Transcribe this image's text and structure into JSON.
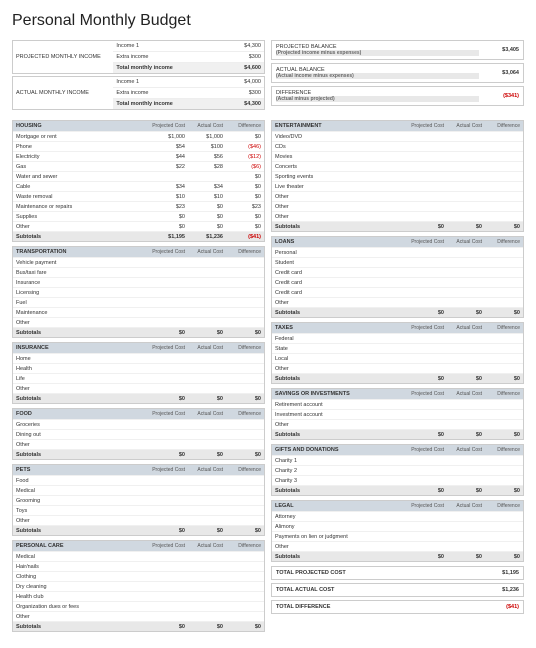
{
  "title": "Personal Monthly Budget",
  "income": {
    "projected": {
      "label": "PROJECTED MONTHLY INCOME",
      "rows": [
        [
          "Income 1",
          "$4,300"
        ],
        [
          "Extra income",
          "$300"
        ]
      ],
      "total": [
        "Total monthly income",
        "$4,600"
      ]
    },
    "actual": {
      "label": "ACTUAL MONTHLY INCOME",
      "rows": [
        [
          "Income 1",
          "$4,000"
        ],
        [
          "Extra income",
          "$300"
        ]
      ],
      "total": [
        "Total monthly income",
        "$4,300"
      ]
    }
  },
  "balance": [
    {
      "label": "PROJECTED BALANCE",
      "sub": "(Projected income minus expenses)",
      "val": "$3,405",
      "neg": false
    },
    {
      "label": "ACTUAL BALANCE",
      "sub": "(Actual income minus expenses)",
      "val": "$3,064",
      "neg": false
    },
    {
      "label": "DIFFERENCE",
      "sub": "(Actual minus projected)",
      "val": "($341)",
      "neg": true
    }
  ],
  "cols_header": [
    "Projected Cost",
    "Actual Cost",
    "Difference"
  ],
  "left": [
    {
      "t": "HOUSING",
      "r": [
        [
          "Mortgage or rent",
          "$1,000",
          "$1,000",
          "$0"
        ],
        [
          "Phone",
          "$54",
          "$100",
          "($46)"
        ],
        [
          "Electricity",
          "$44",
          "$56",
          "($12)"
        ],
        [
          "Gas",
          "$22",
          "$28",
          "($6)"
        ],
        [
          "Water and sewer",
          "",
          "",
          "$0"
        ],
        [
          "Cable",
          "$34",
          "$34",
          "$0"
        ],
        [
          "Waste removal",
          "$10",
          "$10",
          "$0"
        ],
        [
          "Maintenance or repairs",
          "$23",
          "$0",
          "$23"
        ],
        [
          "Supplies",
          "$0",
          "$0",
          "$0"
        ],
        [
          "Other",
          "$0",
          "$0",
          "$0"
        ]
      ],
      "s": [
        "$1,195",
        "$1,236",
        "($41)"
      ]
    },
    {
      "t": "TRANSPORTATION",
      "r": [
        [
          "Vehicle payment",
          "",
          "",
          ""
        ],
        [
          "Bus/taxi fare",
          "",
          "",
          ""
        ],
        [
          "Insurance",
          "",
          "",
          ""
        ],
        [
          "Licensing",
          "",
          "",
          ""
        ],
        [
          "Fuel",
          "",
          "",
          ""
        ],
        [
          "Maintenance",
          "",
          "",
          ""
        ],
        [
          "Other",
          "",
          "",
          ""
        ]
      ],
      "s": [
        "$0",
        "$0",
        "$0"
      ]
    },
    {
      "t": "INSURANCE",
      "r": [
        [
          "Home",
          "",
          "",
          ""
        ],
        [
          "Health",
          "",
          "",
          ""
        ],
        [
          "Life",
          "",
          "",
          ""
        ],
        [
          "Other",
          "",
          "",
          ""
        ]
      ],
      "s": [
        "$0",
        "$0",
        "$0"
      ]
    },
    {
      "t": "FOOD",
      "r": [
        [
          "Groceries",
          "",
          "",
          ""
        ],
        [
          "Dining out",
          "",
          "",
          ""
        ],
        [
          "Other",
          "",
          "",
          ""
        ]
      ],
      "s": [
        "$0",
        "$0",
        "$0"
      ]
    },
    {
      "t": "PETS",
      "r": [
        [
          "Food",
          "",
          "",
          ""
        ],
        [
          "Medical",
          "",
          "",
          ""
        ],
        [
          "Grooming",
          "",
          "",
          ""
        ],
        [
          "Toys",
          "",
          "",
          ""
        ],
        [
          "Other",
          "",
          "",
          ""
        ]
      ],
      "s": [
        "$0",
        "$0",
        "$0"
      ]
    },
    {
      "t": "PERSONAL CARE",
      "r": [
        [
          "Medical",
          "",
          "",
          ""
        ],
        [
          "Hair/nails",
          "",
          "",
          ""
        ],
        [
          "Clothing",
          "",
          "",
          ""
        ],
        [
          "Dry cleaning",
          "",
          "",
          ""
        ],
        [
          "Health club",
          "",
          "",
          ""
        ],
        [
          "Organization dues or fees",
          "",
          "",
          ""
        ],
        [
          "Other",
          "",
          "",
          ""
        ]
      ],
      "s": [
        "$0",
        "$0",
        "$0"
      ]
    }
  ],
  "right": [
    {
      "t": "ENTERTAINMENT",
      "r": [
        [
          "Video/DVD",
          "",
          "",
          ""
        ],
        [
          "CDs",
          "",
          "",
          ""
        ],
        [
          "Movies",
          "",
          "",
          ""
        ],
        [
          "Concerts",
          "",
          "",
          ""
        ],
        [
          "Sporting events",
          "",
          "",
          ""
        ],
        [
          "Live theater",
          "",
          "",
          ""
        ],
        [
          "Other",
          "",
          "",
          ""
        ],
        [
          "Other",
          "",
          "",
          ""
        ],
        [
          "Other",
          "",
          "",
          ""
        ]
      ],
      "s": [
        "$0",
        "$0",
        "$0"
      ]
    },
    {
      "t": "LOANS",
      "r": [
        [
          "Personal",
          "",
          "",
          ""
        ],
        [
          "Student",
          "",
          "",
          ""
        ],
        [
          "Credit card",
          "",
          "",
          ""
        ],
        [
          "Credit card",
          "",
          "",
          ""
        ],
        [
          "Credit card",
          "",
          "",
          ""
        ],
        [
          "Other",
          "",
          "",
          ""
        ]
      ],
      "s": [
        "$0",
        "$0",
        "$0"
      ]
    },
    {
      "t": "TAXES",
      "r": [
        [
          "Federal",
          "",
          "",
          ""
        ],
        [
          "State",
          "",
          "",
          ""
        ],
        [
          "Local",
          "",
          "",
          ""
        ],
        [
          "Other",
          "",
          "",
          ""
        ]
      ],
      "s": [
        "$0",
        "$0",
        "$0"
      ]
    },
    {
      "t": "SAVINGS OR INVESTMENTS",
      "r": [
        [
          "Retirement account",
          "",
          "",
          ""
        ],
        [
          "Investment account",
          "",
          "",
          ""
        ],
        [
          "Other",
          "",
          "",
          ""
        ]
      ],
      "s": [
        "$0",
        "$0",
        "$0"
      ]
    },
    {
      "t": "GIFTS AND DONATIONS",
      "r": [
        [
          "Charity 1",
          "",
          "",
          ""
        ],
        [
          "Charity 2",
          "",
          "",
          ""
        ],
        [
          "Charity 3",
          "",
          "",
          ""
        ]
      ],
      "s": [
        "$0",
        "$0",
        "$0"
      ]
    },
    {
      "t": "LEGAL",
      "r": [
        [
          "Attorney",
          "",
          "",
          ""
        ],
        [
          "Alimony",
          "",
          "",
          ""
        ],
        [
          "Payments on lien or judgment",
          "",
          "",
          ""
        ],
        [
          "Other",
          "",
          "",
          ""
        ]
      ],
      "s": [
        "$0",
        "$0",
        "$0"
      ]
    }
  ],
  "totals": [
    [
      "TOTAL PROJECTED COST",
      "$1,195",
      false
    ],
    [
      "TOTAL ACTUAL COST",
      "$1,236",
      false
    ],
    [
      "TOTAL DIFFERENCE",
      "($41)",
      true
    ]
  ]
}
